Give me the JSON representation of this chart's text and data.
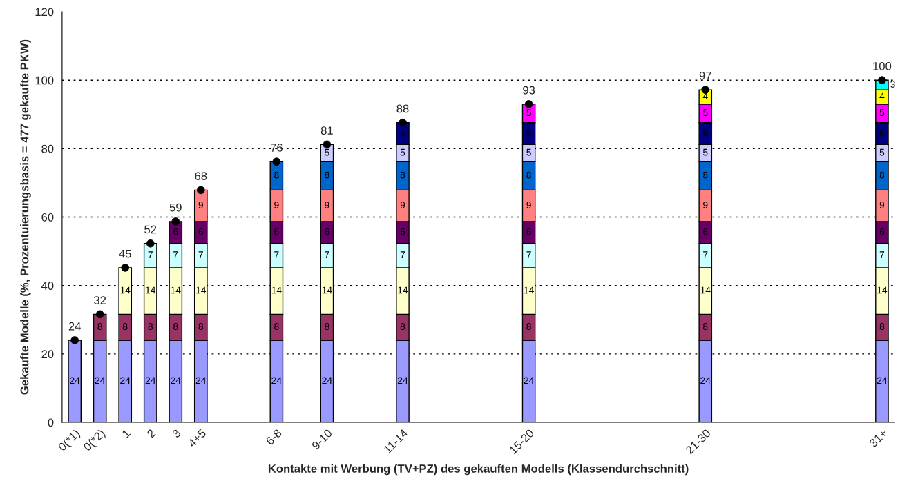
{
  "chart_data": {
    "type": "bar",
    "stacked": true,
    "xlabel": "Kontakte mit Werbung (TV+PZ) des gekauften Modells (Klassendurchschnitt)",
    "ylabel": "Gekaufte Modelle (%, Prozentuierungsbasis = 477 gekaufte PKW)",
    "categories": [
      "0(*1)",
      "0(*2)",
      "1",
      "2",
      "3",
      "4+5",
      null,
      null,
      "6-8",
      null,
      "9-10",
      null,
      null,
      "11-14",
      null,
      null,
      null,
      null,
      "15-20",
      null,
      null,
      null,
      null,
      null,
      null,
      "21-30",
      null,
      null,
      null,
      null,
      null,
      null,
      "31+"
    ],
    "ylim": [
      0,
      120
    ],
    "yticks": [
      0,
      20,
      40,
      60,
      80,
      100,
      120
    ],
    "grid": "y",
    "series": [
      {
        "color": "#9999ff",
        "values": [
          24,
          24,
          24,
          24,
          24,
          24,
          null,
          null,
          24,
          null,
          24,
          null,
          null,
          24,
          null,
          null,
          null,
          null,
          24,
          null,
          null,
          null,
          null,
          null,
          null,
          24,
          null,
          null,
          null,
          null,
          null,
          null,
          24
        ],
        "value_labels": [
          "24",
          "24",
          "24",
          "24",
          "24",
          "24",
          null,
          null,
          "24",
          null,
          "24",
          null,
          null,
          "24",
          null,
          null,
          null,
          null,
          "24",
          null,
          null,
          null,
          null,
          null,
          null,
          "24",
          null,
          null,
          null,
          null,
          null,
          null,
          "24"
        ]
      },
      {
        "color": "#993366",
        "values": [
          null,
          7.6,
          7.6,
          7.6,
          7.6,
          7.6,
          null,
          null,
          7.6,
          null,
          7.6,
          null,
          null,
          7.6,
          null,
          null,
          null,
          null,
          7.6,
          null,
          null,
          null,
          null,
          null,
          null,
          7.6,
          null,
          null,
          null,
          null,
          null,
          null,
          7.6
        ],
        "value_labels": [
          null,
          "8",
          "8",
          "8",
          "8",
          "8",
          null,
          null,
          "8",
          null,
          "8",
          null,
          null,
          "8",
          null,
          null,
          null,
          null,
          "8",
          null,
          null,
          null,
          null,
          null,
          null,
          "8",
          null,
          null,
          null,
          null,
          null,
          null,
          "8"
        ]
      },
      {
        "color": "#ffffcc",
        "values": [
          null,
          null,
          13.6,
          13.6,
          13.6,
          13.6,
          null,
          null,
          13.6,
          null,
          13.6,
          null,
          null,
          13.6,
          null,
          null,
          null,
          null,
          13.6,
          null,
          null,
          null,
          null,
          null,
          null,
          13.6,
          null,
          null,
          null,
          null,
          null,
          null,
          13.6
        ],
        "value_labels": [
          null,
          null,
          "14",
          "14",
          "14",
          "14",
          null,
          null,
          "14",
          null,
          "14",
          null,
          null,
          "14",
          null,
          null,
          null,
          null,
          "14",
          null,
          null,
          null,
          null,
          null,
          null,
          "14",
          null,
          null,
          null,
          null,
          null,
          null,
          "14"
        ]
      },
      {
        "color": "#ccffff",
        "values": [
          null,
          null,
          null,
          7.1,
          7.1,
          7.1,
          null,
          null,
          7.1,
          null,
          7.1,
          null,
          null,
          7.1,
          null,
          null,
          null,
          null,
          7.1,
          null,
          null,
          null,
          null,
          null,
          null,
          7.1,
          null,
          null,
          null,
          null,
          null,
          null,
          7.1
        ],
        "value_labels": [
          null,
          null,
          null,
          "7",
          "7",
          "7",
          null,
          null,
          "7",
          null,
          "7",
          null,
          null,
          "7",
          null,
          null,
          null,
          null,
          "7",
          null,
          null,
          null,
          null,
          null,
          null,
          "7",
          null,
          null,
          null,
          null,
          null,
          null,
          "7"
        ]
      },
      {
        "color": "#660066",
        "values": [
          null,
          null,
          null,
          null,
          6.4,
          6.4,
          null,
          null,
          6.4,
          null,
          6.4,
          null,
          null,
          6.4,
          null,
          null,
          null,
          null,
          6.4,
          null,
          null,
          null,
          null,
          null,
          null,
          6.4,
          null,
          null,
          null,
          null,
          null,
          null,
          6.4
        ],
        "value_labels": [
          null,
          null,
          null,
          null,
          "6",
          "6",
          null,
          null,
          "6",
          null,
          "6",
          null,
          null,
          "6",
          null,
          null,
          null,
          null,
          "6",
          null,
          null,
          null,
          null,
          null,
          null,
          "6",
          null,
          null,
          null,
          null,
          null,
          null,
          "6"
        ]
      },
      {
        "color": "#ff8080",
        "values": [
          null,
          null,
          null,
          null,
          null,
          9.2,
          null,
          null,
          9.2,
          null,
          9.2,
          null,
          null,
          9.2,
          null,
          null,
          null,
          null,
          9.2,
          null,
          null,
          null,
          null,
          null,
          null,
          9.2,
          null,
          null,
          null,
          null,
          null,
          null,
          9.2
        ],
        "value_labels": [
          null,
          null,
          null,
          null,
          null,
          "9",
          null,
          null,
          "9",
          null,
          "9",
          null,
          null,
          "9",
          null,
          null,
          null,
          null,
          "9",
          null,
          null,
          null,
          null,
          null,
          null,
          "9",
          null,
          null,
          null,
          null,
          null,
          null,
          "9"
        ]
      },
      {
        "color": "#0066cc",
        "values": [
          null,
          null,
          null,
          null,
          null,
          null,
          null,
          null,
          8.3,
          null,
          8.3,
          null,
          null,
          8.3,
          null,
          null,
          null,
          null,
          8.3,
          null,
          null,
          null,
          null,
          null,
          null,
          8.3,
          null,
          null,
          null,
          null,
          null,
          null,
          8.3
        ],
        "value_labels": [
          null,
          null,
          null,
          null,
          null,
          null,
          null,
          null,
          "8",
          null,
          "8",
          null,
          null,
          "8",
          null,
          null,
          null,
          null,
          "8",
          null,
          null,
          null,
          null,
          null,
          null,
          "8",
          null,
          null,
          null,
          null,
          null,
          null,
          "8"
        ]
      },
      {
        "color": "#ccccff",
        "values": [
          null,
          null,
          null,
          null,
          null,
          null,
          null,
          null,
          null,
          null,
          5.0,
          null,
          null,
          5.0,
          null,
          null,
          null,
          null,
          5.0,
          null,
          null,
          null,
          null,
          null,
          null,
          5.0,
          null,
          null,
          null,
          null,
          null,
          null,
          5.0
        ],
        "value_labels": [
          null,
          null,
          null,
          null,
          null,
          null,
          null,
          null,
          null,
          null,
          "5",
          null,
          null,
          "5",
          null,
          null,
          null,
          null,
          "5",
          null,
          null,
          null,
          null,
          null,
          null,
          "5",
          null,
          null,
          null,
          null,
          null,
          null,
          "5"
        ]
      },
      {
        "color": "#000080",
        "values": [
          null,
          null,
          null,
          null,
          null,
          null,
          null,
          null,
          null,
          null,
          null,
          null,
          null,
          6.4,
          null,
          null,
          null,
          null,
          6.4,
          null,
          null,
          null,
          null,
          null,
          null,
          6.4,
          null,
          null,
          null,
          null,
          null,
          null,
          6.4
        ],
        "value_labels": [
          null,
          null,
          null,
          null,
          null,
          null,
          null,
          null,
          null,
          null,
          null,
          null,
          null,
          "6",
          null,
          null,
          null,
          null,
          "6",
          null,
          null,
          null,
          null,
          null,
          null,
          "6",
          null,
          null,
          null,
          null,
          null,
          null,
          "6"
        ]
      },
      {
        "color": "#ff00ff",
        "values": [
          null,
          null,
          null,
          null,
          null,
          null,
          null,
          null,
          null,
          null,
          null,
          null,
          null,
          null,
          null,
          null,
          null,
          null,
          5.4,
          null,
          null,
          null,
          null,
          null,
          null,
          5.4,
          null,
          null,
          null,
          null,
          null,
          null,
          5.4
        ],
        "value_labels": [
          null,
          null,
          null,
          null,
          null,
          null,
          null,
          null,
          null,
          null,
          null,
          null,
          null,
          null,
          null,
          null,
          null,
          null,
          "5",
          null,
          null,
          null,
          null,
          null,
          null,
          "5",
          null,
          null,
          null,
          null,
          null,
          null,
          "5"
        ]
      },
      {
        "color": "#ffff00",
        "values": [
          null,
          null,
          null,
          null,
          null,
          null,
          null,
          null,
          null,
          null,
          null,
          null,
          null,
          null,
          null,
          null,
          null,
          null,
          null,
          null,
          null,
          null,
          null,
          null,
          null,
          4.2,
          null,
          null,
          null,
          null,
          null,
          null,
          4.2
        ],
        "value_labels": [
          null,
          null,
          null,
          null,
          null,
          null,
          null,
          null,
          null,
          null,
          null,
          null,
          null,
          null,
          null,
          null,
          null,
          null,
          null,
          null,
          null,
          null,
          null,
          null,
          null,
          "4",
          null,
          null,
          null,
          null,
          null,
          null,
          "4"
        ]
      },
      {
        "color": "#00ffff",
        "values": [
          null,
          null,
          null,
          null,
          null,
          null,
          null,
          null,
          null,
          null,
          null,
          null,
          null,
          null,
          null,
          null,
          null,
          null,
          null,
          null,
          null,
          null,
          null,
          null,
          null,
          null,
          null,
          null,
          null,
          null,
          null,
          null,
          2.8
        ],
        "value_labels": [
          null,
          null,
          null,
          null,
          null,
          null,
          null,
          null,
          null,
          null,
          null,
          null,
          null,
          null,
          null,
          null,
          null,
          null,
          null,
          null,
          null,
          null,
          null,
          null,
          null,
          null,
          null,
          null,
          null,
          null,
          null,
          null,
          "3"
        ]
      },
      {
        "type": "scatter",
        "marker": "circle",
        "color": "#000000",
        "values": [
          24,
          31.6,
          45.2,
          52.3,
          58.7,
          67.9,
          null,
          null,
          76.2,
          null,
          81.2,
          null,
          null,
          87.6,
          null,
          null,
          null,
          null,
          93.0,
          null,
          null,
          null,
          null,
          null,
          null,
          97.2,
          null,
          null,
          null,
          null,
          null,
          null,
          100.0
        ],
        "value_labels": [
          "24",
          "32",
          "45",
          "52",
          "59",
          "68",
          null,
          null,
          "76",
          null,
          "81",
          null,
          null,
          "88",
          null,
          null,
          null,
          null,
          "93",
          null,
          null,
          null,
          null,
          null,
          null,
          "97",
          null,
          null,
          null,
          null,
          null,
          null,
          "100"
        ]
      }
    ]
  }
}
